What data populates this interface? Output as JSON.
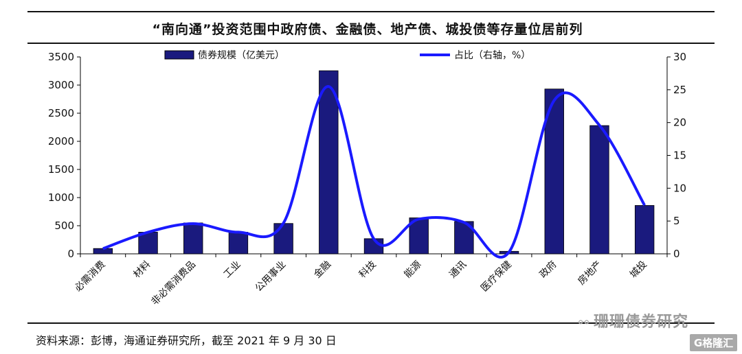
{
  "title": "“南向通”投资范围中政府债、金融债、地产债、城投债等存量位居前列",
  "source": "资料来源：彭博，海通证券研究所，截至 2021 年 9 月 30 日",
  "watermark": {
    "icon": "wechat-icon",
    "text": "珊珊债券研究"
  },
  "badge": "G格隆汇",
  "colors": {
    "bar": "#1a1a7e",
    "line": "#1a1aff",
    "axis": "#000000"
  },
  "chart_data": {
    "type": "bar+line",
    "categories": [
      "必需消费",
      "材料",
      "非必需消费品",
      "工业",
      "公用事业",
      "金融",
      "科技",
      "能源",
      "通讯",
      "医疗保健",
      "政府",
      "房地产",
      "城投"
    ],
    "series": [
      {
        "name": "债券规模（亿美元）",
        "type": "bar",
        "axis": "left",
        "values": [
          95,
          385,
          550,
          385,
          540,
          3255,
          270,
          640,
          575,
          45,
          2930,
          2280,
          860
        ]
      },
      {
        "name": "占比（右轴，%）",
        "type": "line",
        "axis": "right",
        "values": [
          0.8,
          3.3,
          4.6,
          3.3,
          4.7,
          25.5,
          2.3,
          5.3,
          4.8,
          0.3,
          23.4,
          19.6,
          7.4
        ]
      }
    ],
    "yleft": {
      "min": 0,
      "max": 3500,
      "ticks": [
        0,
        500,
        1000,
        1500,
        2000,
        2500,
        3000,
        3500
      ]
    },
    "yright": {
      "min": 0,
      "max": 30,
      "ticks": [
        0,
        5,
        10,
        15,
        20,
        25,
        30
      ]
    },
    "legend_position": "top",
    "grid": false
  }
}
